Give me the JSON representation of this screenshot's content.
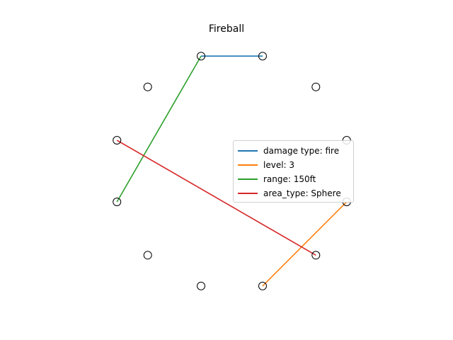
{
  "title": "Fireball",
  "nodes": 12,
  "connections": [
    {
      "label": "damage type: fire",
      "from": 0,
      "to": 1,
      "color": "#1f77b4"
    },
    {
      "label": "level: 3",
      "from": 4,
      "to": 6,
      "color": "#ff7f0e"
    },
    {
      "label": "range: 150ft",
      "from": 9,
      "to": 0,
      "color": "#2ca02c"
    },
    {
      "label": "area_type: Sphere",
      "from": 10,
      "to": 5,
      "color": "#d62728"
    }
  ],
  "legend": {
    "placement": "center-right",
    "items": [
      {
        "label": "damage type: fire",
        "color": "#1f77b4"
      },
      {
        "label": "level: 3",
        "color": "#ff7f0e"
      },
      {
        "label": "range: 150ft",
        "color": "#2ca02c"
      },
      {
        "label": "area_type: Sphere",
        "color": "#d62728"
      }
    ]
  }
}
